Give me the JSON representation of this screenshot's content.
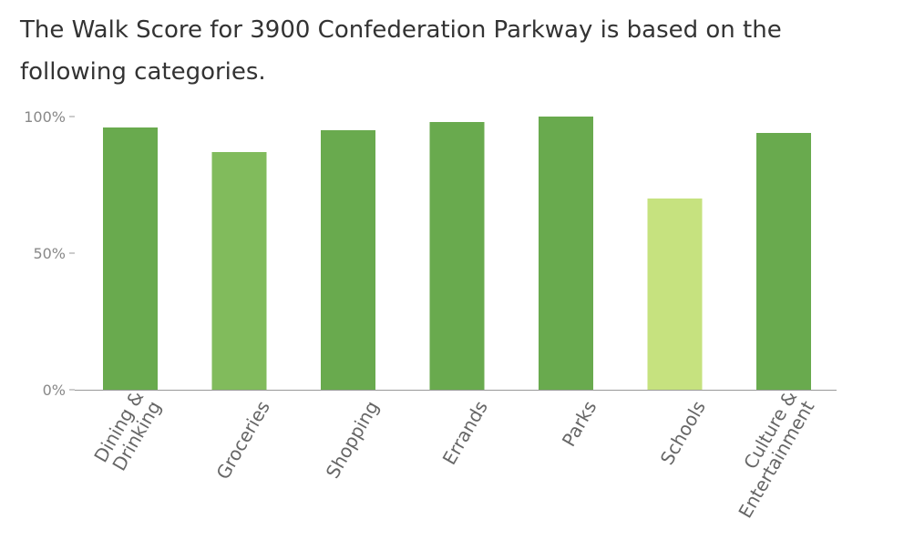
{
  "intro_text": "The Walk Score for 3900 Confederation Parkway is based on the following categories.",
  "chart_data": {
    "type": "bar",
    "title": "",
    "xlabel": "",
    "ylabel": "",
    "ylim": [
      0,
      100
    ],
    "y_ticks": [
      "0%",
      "50%",
      "100%"
    ],
    "grid": false,
    "categories": [
      [
        "Dining &",
        "Drinking"
      ],
      [
        "Groceries"
      ],
      [
        "Shopping"
      ],
      [
        "Errands"
      ],
      [
        "Parks"
      ],
      [
        "Schools"
      ],
      [
        "Culture &",
        "Entertainment"
      ]
    ],
    "values": [
      96,
      87,
      95,
      98,
      100,
      70,
      94
    ],
    "colors": [
      "#69aa4e",
      "#81bb5c",
      "#69aa4e",
      "#69aa4e",
      "#69aa4e",
      "#c6e27f",
      "#69aa4e"
    ],
    "axis_color": "#999999"
  }
}
